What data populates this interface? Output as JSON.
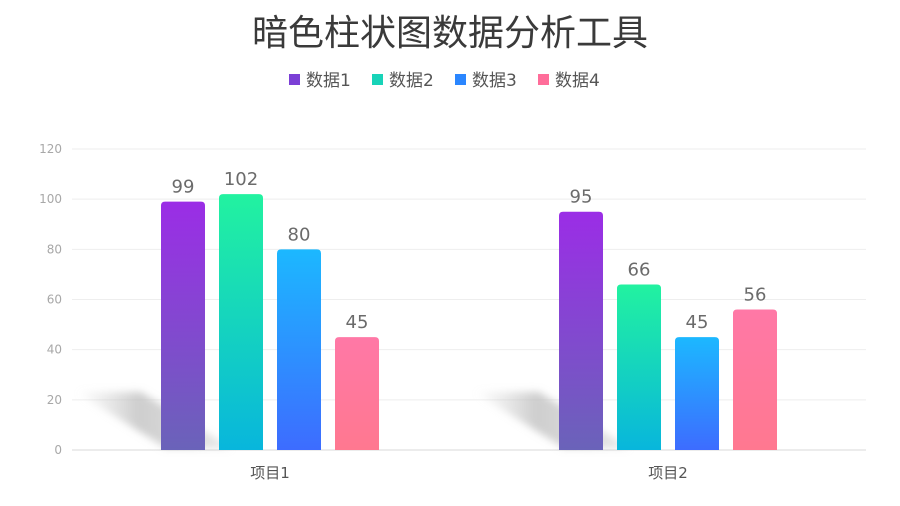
{
  "chart_data": {
    "type": "bar",
    "title": "暗色柱状图数据分析工具",
    "categories": [
      "项目1",
      "项目2"
    ],
    "series": [
      {
        "name": "数据1",
        "values": [
          99,
          95
        ],
        "color_top": "#9b2de6",
        "color_bottom": "#6a63b9",
        "legend_color": "#7b3fd6"
      },
      {
        "name": "数据2",
        "values": [
          102,
          66
        ],
        "color_top": "#22f2a0",
        "color_bottom": "#08b6dc",
        "legend_color": "#18d3b8"
      },
      {
        "name": "数据3",
        "values": [
          80,
          45
        ],
        "color_top": "#1cb8ff",
        "color_bottom": "#3d6cff",
        "legend_color": "#2a86ff"
      },
      {
        "name": "数据4",
        "values": [
          45,
          56
        ],
        "color_top": "#ff78a6",
        "color_bottom": "#ff7890",
        "legend_color": "#ff6d9a"
      }
    ],
    "yticks": [
      0,
      20,
      40,
      60,
      80,
      100,
      120
    ],
    "ylim": [
      0,
      120
    ],
    "xlabel": "",
    "ylabel": "",
    "grid": true,
    "legend_position": "top-center",
    "data_labels": true
  }
}
